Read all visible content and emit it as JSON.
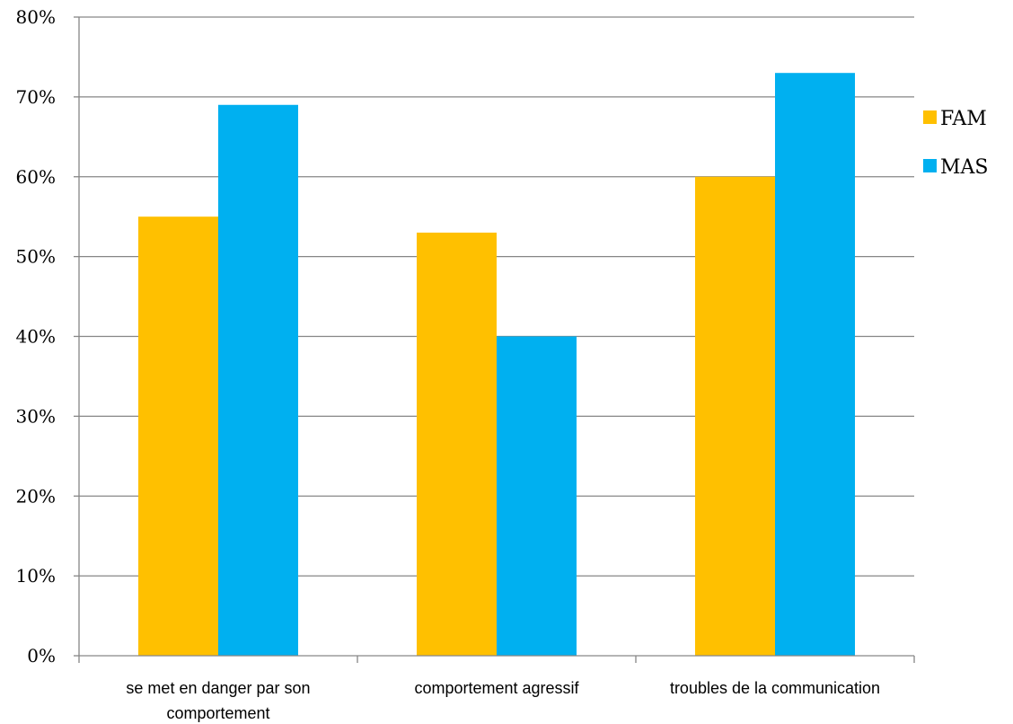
{
  "chart_data": {
    "type": "bar",
    "categories": [
      [
        "se met en danger par son",
        "comportement"
      ],
      [
        "comportement agressif"
      ],
      [
        "troubles de la communication"
      ]
    ],
    "series": [
      {
        "name": "FAM",
        "values": [
          55,
          53,
          60
        ],
        "color": "#FFC000"
      },
      {
        "name": "MAS",
        "values": [
          69,
          40,
          73
        ],
        "color": "#00B0F0"
      }
    ],
    "ylim": [
      0,
      80
    ],
    "yticks": [
      0,
      10,
      20,
      30,
      40,
      50,
      60,
      70,
      80
    ],
    "ytick_suffix": "%",
    "title": "",
    "xlabel": "",
    "ylabel": "",
    "grid": true,
    "legend_position": "right"
  }
}
